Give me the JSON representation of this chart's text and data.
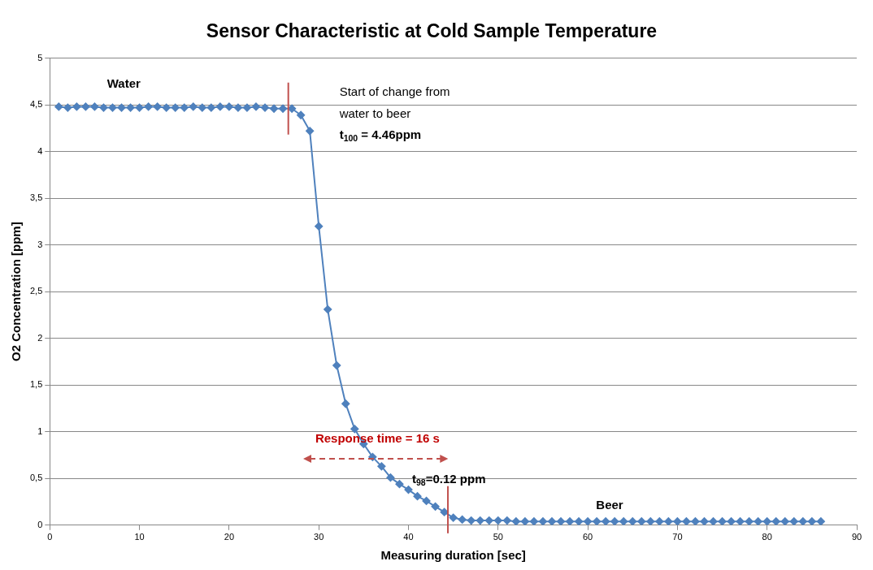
{
  "chart_data": {
    "type": "line",
    "title": "Sensor Characteristic at Cold Sample Temperature",
    "xlabel": "Measuring duration [sec]",
    "ylabel": "O2 Concentration [ppm]",
    "x": [
      1,
      2,
      3,
      4,
      5,
      6,
      7,
      8,
      9,
      10,
      11,
      12,
      13,
      14,
      15,
      16,
      17,
      18,
      19,
      20,
      21,
      22,
      23,
      24,
      25,
      26,
      27,
      28,
      29,
      30,
      31,
      32,
      33,
      34,
      35,
      36,
      37,
      38,
      39,
      40,
      41,
      42,
      43,
      44,
      45,
      46,
      47,
      48,
      49,
      50,
      51,
      52,
      53,
      54,
      55,
      56,
      57,
      58,
      59,
      60,
      61,
      62,
      63,
      64,
      65,
      66,
      67,
      68,
      69,
      70,
      71,
      72,
      73,
      74,
      75,
      76,
      77,
      78,
      79,
      80,
      81,
      82,
      83,
      84,
      85,
      86
    ],
    "series": [
      {
        "color": "#4f81bd",
        "values": [
          4.48,
          4.47,
          4.48,
          4.48,
          4.48,
          4.47,
          4.47,
          4.47,
          4.47,
          4.47,
          4.48,
          4.48,
          4.47,
          4.47,
          4.47,
          4.48,
          4.47,
          4.47,
          4.48,
          4.48,
          4.47,
          4.47,
          4.48,
          4.47,
          4.46,
          4.46,
          4.46,
          4.39,
          4.22,
          3.2,
          2.31,
          1.71,
          1.3,
          1.03,
          0.87,
          0.73,
          0.63,
          0.51,
          0.44,
          0.38,
          0.31,
          0.26,
          0.2,
          0.14,
          0.08,
          0.06,
          0.05,
          0.05,
          0.05,
          0.05,
          0.05,
          0.04,
          0.04,
          0.04,
          0.04,
          0.04,
          0.04,
          0.04,
          0.04,
          0.04,
          0.04,
          0.04,
          0.04,
          0.04,
          0.04,
          0.04,
          0.04,
          0.04,
          0.04,
          0.04,
          0.04,
          0.04,
          0.04,
          0.04,
          0.04,
          0.04,
          0.04,
          0.04,
          0.04,
          0.04,
          0.04,
          0.04,
          0.04,
          0.04,
          0.04,
          0.04
        ]
      }
    ],
    "xlim": [
      0,
      90
    ],
    "xticks": [
      0,
      10,
      20,
      30,
      40,
      50,
      60,
      70,
      80,
      90
    ],
    "ylim": [
      0,
      5
    ],
    "yticks": [
      0,
      {
        "value": 0.5,
        "label": "0,5"
      },
      1,
      {
        "value": 1.5,
        "label": "1,5"
      },
      2,
      {
        "value": 2.5,
        "label": "2,5"
      },
      3,
      {
        "value": 3.5,
        "label": "3,5"
      },
      4,
      {
        "value": 4.5,
        "label": "4,5"
      },
      5
    ],
    "grid": "y",
    "marker": "diamond",
    "line_style": "solid",
    "ref_lines": [
      {
        "axis": "x",
        "value": 26.6,
        "color": "#c0504d"
      },
      {
        "axis": "x",
        "value": 44.4,
        "color": "#c0504d"
      }
    ],
    "annotations": [
      "Water",
      "Start of change from",
      "water to beer",
      "t$_{100}$ = 4.46ppm",
      "Response time = 16 s",
      "t$_{98}$=0.12 ppm",
      "Beer"
    ]
  }
}
